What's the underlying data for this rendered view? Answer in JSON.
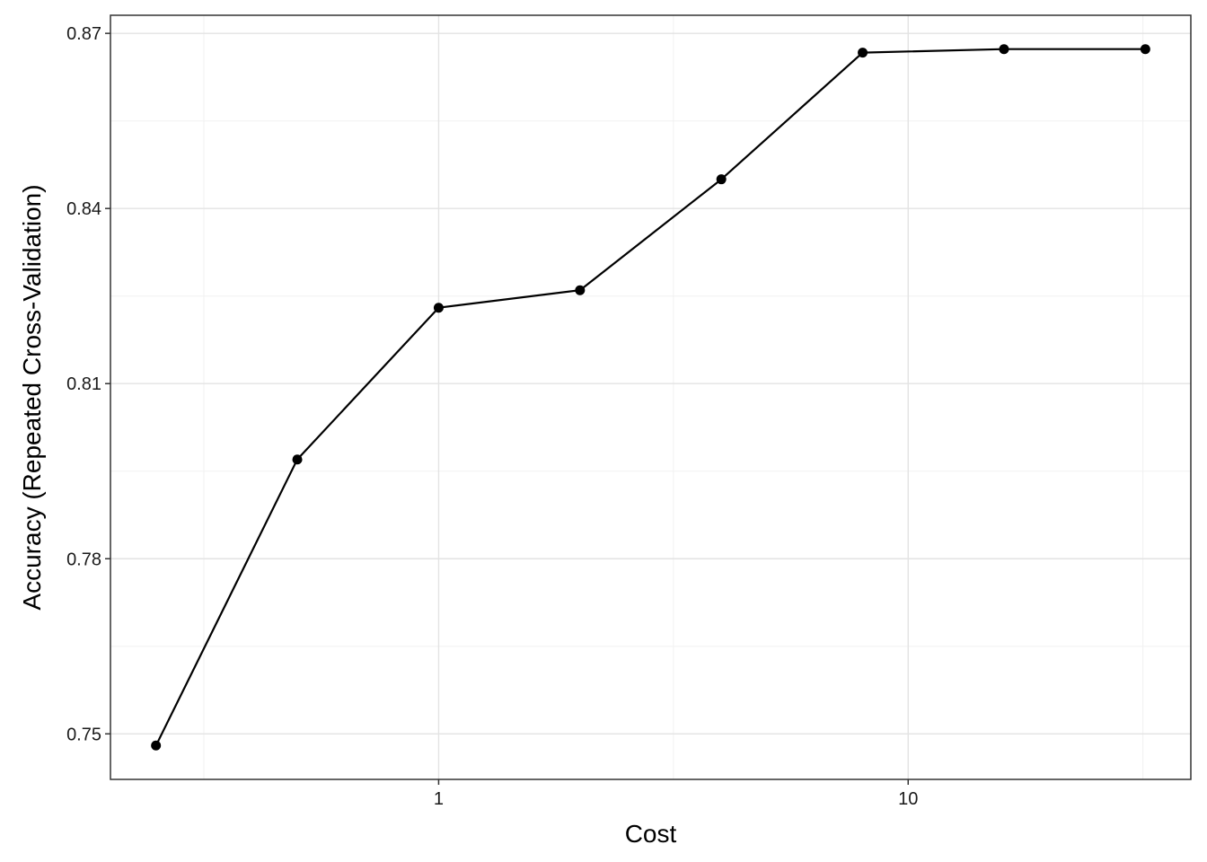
{
  "chart_data": {
    "type": "line",
    "xlabel": "Cost",
    "ylabel": "Accuracy (Repeated Cross-Validation)",
    "x_scale": "log10",
    "xlim": [
      0.2,
      40
    ],
    "ylim": [
      0.7422,
      0.8731
    ],
    "x_ticks": [
      {
        "value": 1,
        "label": "1"
      },
      {
        "value": 10,
        "label": "10"
      }
    ],
    "x_minor_ticks": [
      0.3162,
      3.162,
      31.62
    ],
    "y_ticks": [
      {
        "value": 0.75,
        "label": "0.75"
      },
      {
        "value": 0.78,
        "label": "0.78"
      },
      {
        "value": 0.81,
        "label": "0.81"
      },
      {
        "value": 0.84,
        "label": "0.84"
      },
      {
        "value": 0.87,
        "label": "0.87"
      }
    ],
    "y_minor_ticks": [
      0.765,
      0.795,
      0.825,
      0.855
    ],
    "grid": true,
    "series": [
      {
        "x": [
          0.25,
          0.5,
          1,
          2,
          4,
          8,
          16,
          32
        ],
        "y": [
          0.748,
          0.797,
          0.823,
          0.826,
          0.845,
          0.8667,
          0.8673,
          0.8673
        ]
      }
    ]
  }
}
